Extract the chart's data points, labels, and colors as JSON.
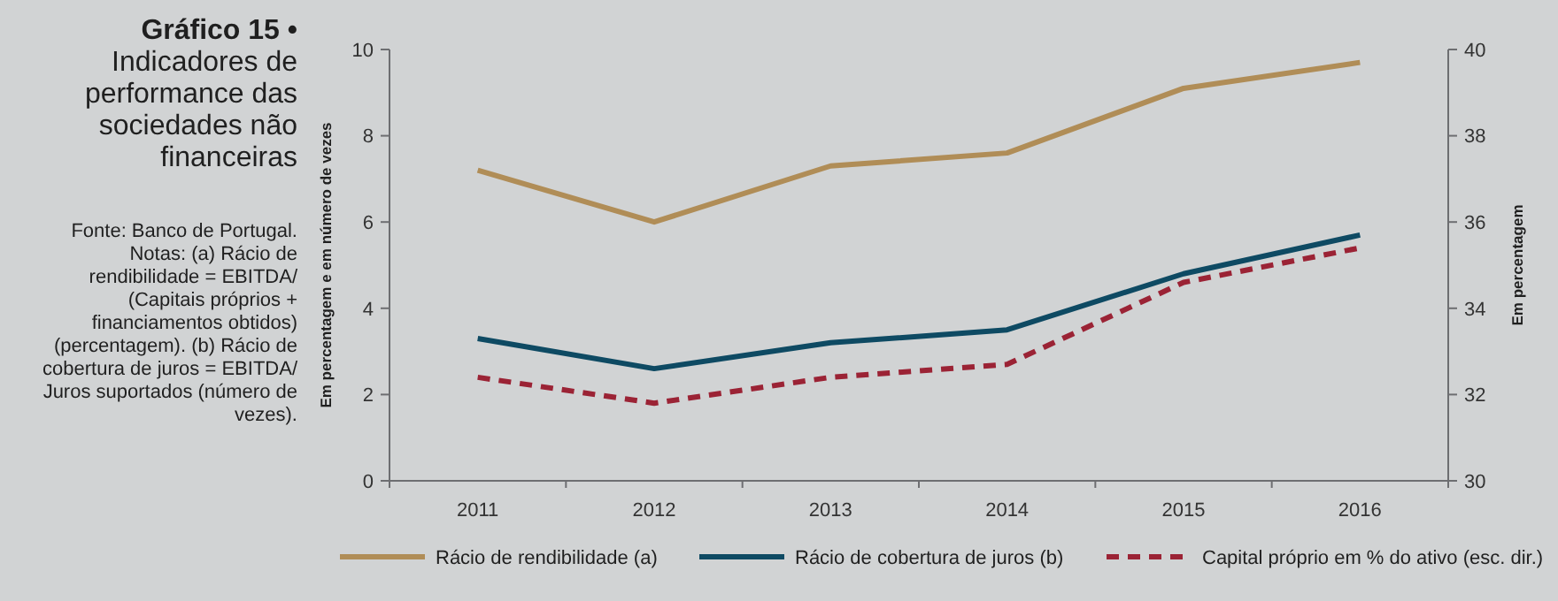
{
  "chart_data": {
    "type": "line",
    "title": "Gráfico 15 • Indicadores de performance das sociedades não financeiras",
    "annotations": [
      "Fonte: Banco de Portugal. Notas: (a) Rácio de rendibilidade = EBITDA/ (Capitais próprios + financiamentos obtidos) (percentagem). (b) Rácio de cobertura de juros = EBITDA/ Juros suportados (número de vezes)."
    ],
    "categories": [
      "2011",
      "2012",
      "2013",
      "2014",
      "2015",
      "2016"
    ],
    "series": [
      {
        "name": "Rácio de rendibilidade (a)",
        "color": "#b08d57",
        "values": [
          7.2,
          6.0,
          7.3,
          7.6,
          9.1,
          9.7
        ],
        "line_style": "solid"
      },
      {
        "name": "Rácio de cobertura de juros (b)",
        "color": "#0e4a63",
        "values": [
          3.3,
          2.6,
          3.2,
          3.5,
          4.8,
          5.7
        ],
        "line_style": "solid"
      },
      {
        "name": "Capital próprio em % do ativo (esc. dir.)",
        "color": "#9b2335",
        "values": [
          32.4,
          31.8,
          32.4,
          32.7,
          34.6,
          35.4
        ],
        "axis": "y2",
        "line_style": "dashed"
      }
    ],
    "ylabel": "Em percentagem e em número de vezes",
    "y2label": "Em percentagem",
    "ylim": [
      0,
      10
    ],
    "yticks": [
      0,
      2,
      4,
      6,
      8,
      10
    ],
    "y2lim": [
      30,
      40
    ],
    "y2ticks": [
      30,
      32,
      34,
      36,
      38,
      40
    ],
    "legend": "bottom",
    "marker": "none",
    "grid": false
  }
}
